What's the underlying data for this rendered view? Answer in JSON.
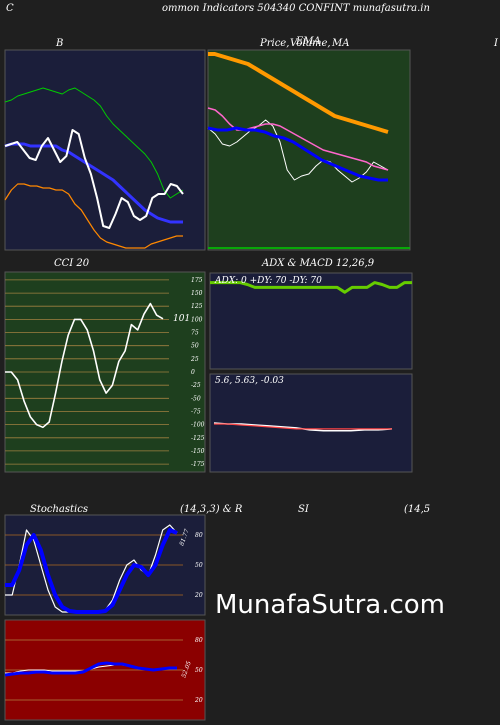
{
  "header": {
    "title": "ommon  Indicators 504340  CONFINT munafasutra.in",
    "left_letter": "C"
  },
  "watermark": "MunafaSutra.com",
  "panels": {
    "b": {
      "title": "B"
    },
    "price": {
      "title_a": "Price,",
      "title_b": "Volume,",
      "title_c": "MA",
      "title_d": "EMA",
      "right_letter": "I"
    },
    "cci": {
      "title": "CCI 20",
      "value_label": "101"
    },
    "adx": {
      "title": "ADX  & MACD 12,26,9",
      "readout": "ADX: 0   +DY: 70   -DY: 70"
    },
    "macd": {
      "readout": "5.6,  5.63,  -0.03"
    },
    "stoch": {
      "title": "Stochastics",
      "params": "(14,3,3) & R",
      "value_label": "81.77"
    },
    "rsi": {
      "title": "SI",
      "params": "(14,5",
      "value_label": "52.05"
    }
  },
  "chart_data": [
    {
      "type": "line",
      "title": "B",
      "series": [
        {
          "color": "#00cc00",
          "values": [
            0.26,
            0.25,
            0.23,
            0.22,
            0.21,
            0.2,
            0.19,
            0.2,
            0.21,
            0.22,
            0.2,
            0.19,
            0.21,
            0.23,
            0.25,
            0.28,
            0.33,
            0.37,
            0.4,
            0.43,
            0.46,
            0.49,
            0.52,
            0.56,
            0.62,
            0.7,
            0.74,
            0.72,
            0.7
          ]
        },
        {
          "color": "#3333ff",
          "values": [
            0.48,
            0.47,
            0.47,
            0.47,
            0.48,
            0.48,
            0.48,
            0.48,
            0.48,
            0.5,
            0.51,
            0.53,
            0.55,
            0.57,
            0.59,
            0.61,
            0.63,
            0.65,
            0.68,
            0.71,
            0.74,
            0.77,
            0.8,
            0.82,
            0.84,
            0.85,
            0.86,
            0.86,
            0.86
          ]
        },
        {
          "color": "#ff8800",
          "values": [
            0.75,
            0.7,
            0.67,
            0.67,
            0.68,
            0.68,
            0.69,
            0.69,
            0.7,
            0.7,
            0.72,
            0.77,
            0.8,
            0.85,
            0.9,
            0.94,
            0.96,
            0.97,
            0.98,
            0.99,
            0.99,
            0.99,
            0.99,
            0.97,
            0.96,
            0.95,
            0.94,
            0.93,
            0.93
          ]
        },
        {
          "color": "#ffffff",
          "values": [
            0.48,
            0.47,
            0.46,
            0.5,
            0.54,
            0.55,
            0.48,
            0.44,
            0.5,
            0.56,
            0.53,
            0.4,
            0.42,
            0.54,
            0.62,
            0.74,
            0.88,
            0.89,
            0.82,
            0.74,
            0.76,
            0.83,
            0.85,
            0.83,
            0.74,
            0.72,
            0.72,
            0.67,
            0.68,
            0.72
          ]
        }
      ]
    },
    {
      "type": "line",
      "title": "Price, Volume, MA",
      "series": [
        {
          "color": "#ff9900",
          "values": [
            0.02,
            0.02,
            0.03,
            0.04,
            0.05,
            0.06,
            0.07,
            0.09,
            0.11,
            0.13,
            0.15,
            0.17,
            0.19,
            0.21,
            0.23,
            0.25,
            0.27,
            0.29,
            0.31,
            0.33,
            0.34,
            0.35,
            0.36,
            0.37,
            0.38,
            0.39,
            0.4,
            0.41
          ]
        },
        {
          "color": "#ffffff",
          "values": [
            0.39,
            0.42,
            0.47,
            0.48,
            0.46,
            0.43,
            0.4,
            0.38,
            0.35,
            0.38,
            0.46,
            0.6,
            0.65,
            0.63,
            0.62,
            0.58,
            0.55,
            0.56,
            0.6,
            0.63,
            0.66,
            0.64,
            0.61,
            0.56,
            0.58,
            0.6
          ]
        },
        {
          "color": "#ff66cc",
          "values": [
            0.29,
            0.3,
            0.33,
            0.37,
            0.4,
            0.4,
            0.39,
            0.38,
            0.37,
            0.37,
            0.38,
            0.4,
            0.42,
            0.44,
            0.46,
            0.48,
            0.5,
            0.51,
            0.52,
            0.53,
            0.54,
            0.55,
            0.56,
            0.58,
            0.59,
            0.6
          ]
        },
        {
          "color": "#0000ff",
          "values": [
            0.39,
            0.4,
            0.4,
            0.39,
            0.4,
            0.4,
            0.41,
            0.43,
            0.44,
            0.46,
            0.49,
            0.52,
            0.55,
            0.57,
            0.59,
            0.61,
            0.63,
            0.64,
            0.65,
            0.65
          ]
        }
      ]
    },
    {
      "type": "line",
      "title": "CCI 20",
      "y_ticks": [
        175,
        150,
        125,
        100,
        75,
        50,
        25,
        0,
        -25,
        -50,
        -75,
        -100,
        -125,
        -150,
        -175
      ],
      "ylim": [
        -190,
        190
      ],
      "series": [
        {
          "color": "#ffffff",
          "values": [
            0,
            0,
            -15,
            -55,
            -85,
            -100,
            -105,
            -95,
            -40,
            20,
            70,
            100,
            100,
            80,
            40,
            -15,
            -40,
            -25,
            20,
            40,
            90,
            80,
            110,
            130,
            108,
            101
          ]
        }
      ]
    },
    {
      "type": "line",
      "title": "ADX",
      "series": [
        {
          "color": "#66cc00",
          "values": [
            0.1,
            0.1,
            0.1,
            0.1,
            0.1,
            0.12,
            0.15,
            0.15,
            0.15,
            0.15,
            0.15,
            0.15,
            0.15,
            0.15,
            0.15,
            0.15,
            0.15,
            0.15,
            0.2,
            0.15,
            0.15,
            0.15,
            0.1,
            0.12,
            0.15,
            0.15,
            0.1,
            0.1
          ]
        }
      ]
    },
    {
      "type": "line",
      "title": "MACD 12,26,9",
      "readout": "5.6, 5.63, -0.03",
      "series": [
        {
          "color": "#ffffff",
          "values": [
            0.5,
            0.51,
            0.51,
            0.52,
            0.53,
            0.54,
            0.55,
            0.57,
            0.58,
            0.58,
            0.58,
            0.57,
            0.57,
            0.56
          ]
        },
        {
          "color": "#ff4444",
          "values": [
            0.51,
            0.51,
            0.52,
            0.53,
            0.54,
            0.55,
            0.56,
            0.56,
            0.56,
            0.56,
            0.56,
            0.56,
            0.56,
            0.56
          ]
        }
      ]
    },
    {
      "type": "line",
      "title": "Stochastics (14,3,3)",
      "y_ticks": [
        80,
        50,
        20
      ],
      "ylim": [
        0,
        100
      ],
      "series": [
        {
          "color": "#ffffff",
          "values": [
            20,
            20,
            50,
            85,
            75,
            50,
            25,
            8,
            3,
            3,
            3,
            3,
            3,
            3,
            5,
            15,
            35,
            50,
            55,
            45,
            40,
            60,
            85,
            90,
            82
          ]
        },
        {
          "color": "#0000ff",
          "values": [
            30,
            30,
            45,
            70,
            80,
            65,
            40,
            20,
            8,
            4,
            3,
            3,
            3,
            3,
            4,
            10,
            25,
            40,
            50,
            48,
            40,
            50,
            70,
            85,
            82
          ]
        }
      ]
    },
    {
      "type": "line",
      "title": "RSI (14,5)",
      "y_ticks": [
        80,
        50,
        20
      ],
      "ylim": [
        0,
        100
      ],
      "series": [
        {
          "color": "#ffffff",
          "values": [
            47,
            47,
            49,
            50,
            50,
            50,
            49,
            49,
            49,
            49,
            49,
            51,
            53,
            54,
            55,
            55,
            54,
            52,
            51,
            51,
            51,
            52,
            52
          ]
        },
        {
          "color": "#0000ff",
          "values": [
            45,
            46,
            47,
            47,
            48,
            48,
            47,
            47,
            47,
            47,
            48,
            52,
            56,
            57,
            56,
            56,
            54,
            52,
            51,
            50,
            51,
            52,
            52
          ]
        }
      ]
    }
  ]
}
